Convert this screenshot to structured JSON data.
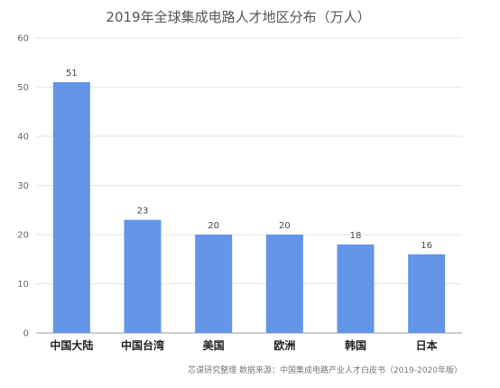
{
  "chart_data": {
    "type": "bar",
    "title": "2019年全球集成电路人才地区分布（万人）",
    "categories": [
      "中国大陆",
      "中国台湾",
      "美国",
      "欧洲",
      "韩国",
      "日本"
    ],
    "values": [
      51,
      23,
      20,
      20,
      18,
      16
    ],
    "data_labels": [
      "51",
      "23",
      "20",
      "20",
      "18",
      "16"
    ],
    "xlabel": "",
    "ylabel": "",
    "ylim": [
      0,
      60
    ],
    "yticks": [
      "0",
      "10",
      "20",
      "30",
      "40",
      "50",
      "60"
    ],
    "grid": true,
    "legend": "none",
    "bar_color": "#6495e6",
    "source_note": "芯谋研究整理  数据来源：中国集成电路产业人才白皮书（2019-2020年版）"
  }
}
